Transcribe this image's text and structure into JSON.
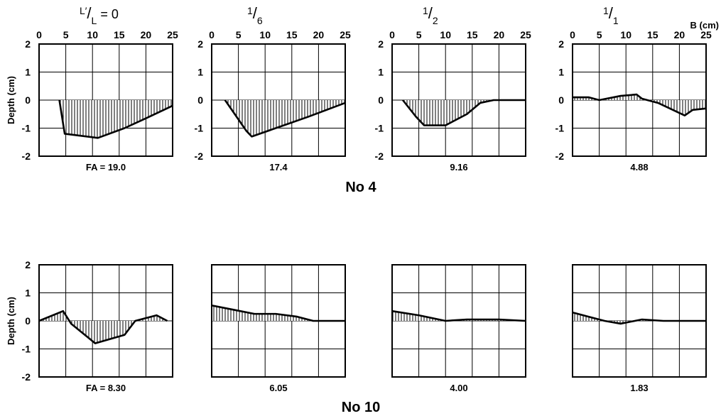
{
  "figure": {
    "group_labels": [
      "No 4",
      "No 10"
    ],
    "y_axis_label": "Depth (cm)",
    "x_axis_unit_label": "B (cm)",
    "column_headers": [
      {
        "num": "L′",
        "den": "L",
        "suffix": " = 0"
      },
      {
        "num": "1",
        "den": "6",
        "suffix": ""
      },
      {
        "num": "1",
        "den": "2",
        "suffix": ""
      },
      {
        "num": "1",
        "den": "1",
        "suffix": ""
      }
    ]
  },
  "chart_data": [
    {
      "type": "area",
      "group": "No 4",
      "column": "L′/L = 0",
      "xlim": [
        0,
        25
      ],
      "ylim": [
        -2,
        2
      ],
      "x_ticks": [
        "0",
        "5",
        "10",
        "15",
        "20",
        "25"
      ],
      "y_ticks": [
        "2",
        "1",
        "0",
        "-1",
        "-2"
      ],
      "caption": "FA = 19.0",
      "points": [
        [
          3.8,
          0
        ],
        [
          4.8,
          -1.2
        ],
        [
          11,
          -1.35
        ],
        [
          16,
          -1.0
        ],
        [
          20,
          -0.65
        ],
        [
          25,
          -0.2
        ]
      ]
    },
    {
      "type": "area",
      "group": "No 4",
      "column": "1/6",
      "xlim": [
        0,
        25
      ],
      "ylim": [
        -2,
        2
      ],
      "x_ticks": [
        "0",
        "5",
        "10",
        "15",
        "20",
        "25"
      ],
      "y_ticks": [
        "2",
        "1",
        "0",
        "-1",
        "-2"
      ],
      "caption": "17.4",
      "points": [
        [
          2.5,
          0
        ],
        [
          6.5,
          -1.1
        ],
        [
          7.5,
          -1.3
        ],
        [
          12,
          -1.0
        ],
        [
          18,
          -0.6
        ],
        [
          25,
          -0.1
        ]
      ]
    },
    {
      "type": "area",
      "group": "No 4",
      "column": "1/2",
      "xlim": [
        0,
        25
      ],
      "ylim": [
        -2,
        2
      ],
      "x_ticks": [
        "0",
        "5",
        "10",
        "15",
        "20",
        "25"
      ],
      "y_ticks": [
        "2",
        "1",
        "0",
        "-1",
        "-2"
      ],
      "caption": "9.16",
      "points": [
        [
          2,
          0
        ],
        [
          4.5,
          -0.6
        ],
        [
          6,
          -0.9
        ],
        [
          10,
          -0.9
        ],
        [
          14,
          -0.5
        ],
        [
          16.5,
          -0.1
        ],
        [
          19,
          0
        ],
        [
          25,
          0
        ]
      ]
    },
    {
      "type": "area",
      "group": "No 4",
      "column": "1/1",
      "xlim": [
        0,
        25
      ],
      "ylim": [
        -2,
        2
      ],
      "x_ticks": [
        "0",
        "5",
        "10",
        "15",
        "20",
        "25"
      ],
      "y_ticks": [
        "2",
        "1",
        "0",
        "-1",
        "-2"
      ],
      "caption": "4.88",
      "points": [
        [
          0,
          0.1
        ],
        [
          3,
          0.1
        ],
        [
          5,
          0
        ],
        [
          9,
          0.15
        ],
        [
          12,
          0.2
        ],
        [
          13,
          0.05
        ],
        [
          16,
          -0.1
        ],
        [
          21,
          -0.55
        ],
        [
          22.5,
          -0.35
        ],
        [
          25,
          -0.3
        ]
      ]
    },
    {
      "type": "area",
      "group": "No 10",
      "column": "L′/L = 0",
      "xlim": [
        0,
        25
      ],
      "ylim": [
        -2,
        2
      ],
      "y_ticks": [
        "2",
        "1",
        "0",
        "-1",
        "-2"
      ],
      "caption": "FA = 8.30",
      "points": [
        [
          0,
          0
        ],
        [
          4.5,
          0.35
        ],
        [
          6,
          -0.1
        ],
        [
          10.5,
          -0.8
        ],
        [
          16,
          -0.5
        ],
        [
          18,
          0
        ],
        [
          22,
          0.2
        ],
        [
          24,
          0
        ]
      ]
    },
    {
      "type": "area",
      "group": "No 10",
      "column": "1/6",
      "xlim": [
        0,
        25
      ],
      "ylim": [
        -2,
        2
      ],
      "caption": "6.05",
      "points": [
        [
          0,
          0.55
        ],
        [
          4,
          0.4
        ],
        [
          8,
          0.25
        ],
        [
          12,
          0.25
        ],
        [
          16,
          0.15
        ],
        [
          19,
          0
        ],
        [
          25,
          0
        ]
      ]
    },
    {
      "type": "area",
      "group": "No 10",
      "column": "1/2",
      "xlim": [
        0,
        25
      ],
      "ylim": [
        -2,
        2
      ],
      "caption": "4.00",
      "points": [
        [
          0,
          0.35
        ],
        [
          5,
          0.2
        ],
        [
          10,
          0
        ],
        [
          14,
          0.05
        ],
        [
          20,
          0.05
        ],
        [
          25,
          0
        ]
      ]
    },
    {
      "type": "area",
      "group": "No 10",
      "column": "1/1",
      "xlim": [
        0,
        25
      ],
      "ylim": [
        -2,
        2
      ],
      "caption": "1.83",
      "points": [
        [
          0,
          0.3
        ],
        [
          3,
          0.15
        ],
        [
          6,
          0
        ],
        [
          9,
          -0.1
        ],
        [
          13,
          0.05
        ],
        [
          17,
          0
        ],
        [
          25,
          0
        ]
      ]
    }
  ]
}
